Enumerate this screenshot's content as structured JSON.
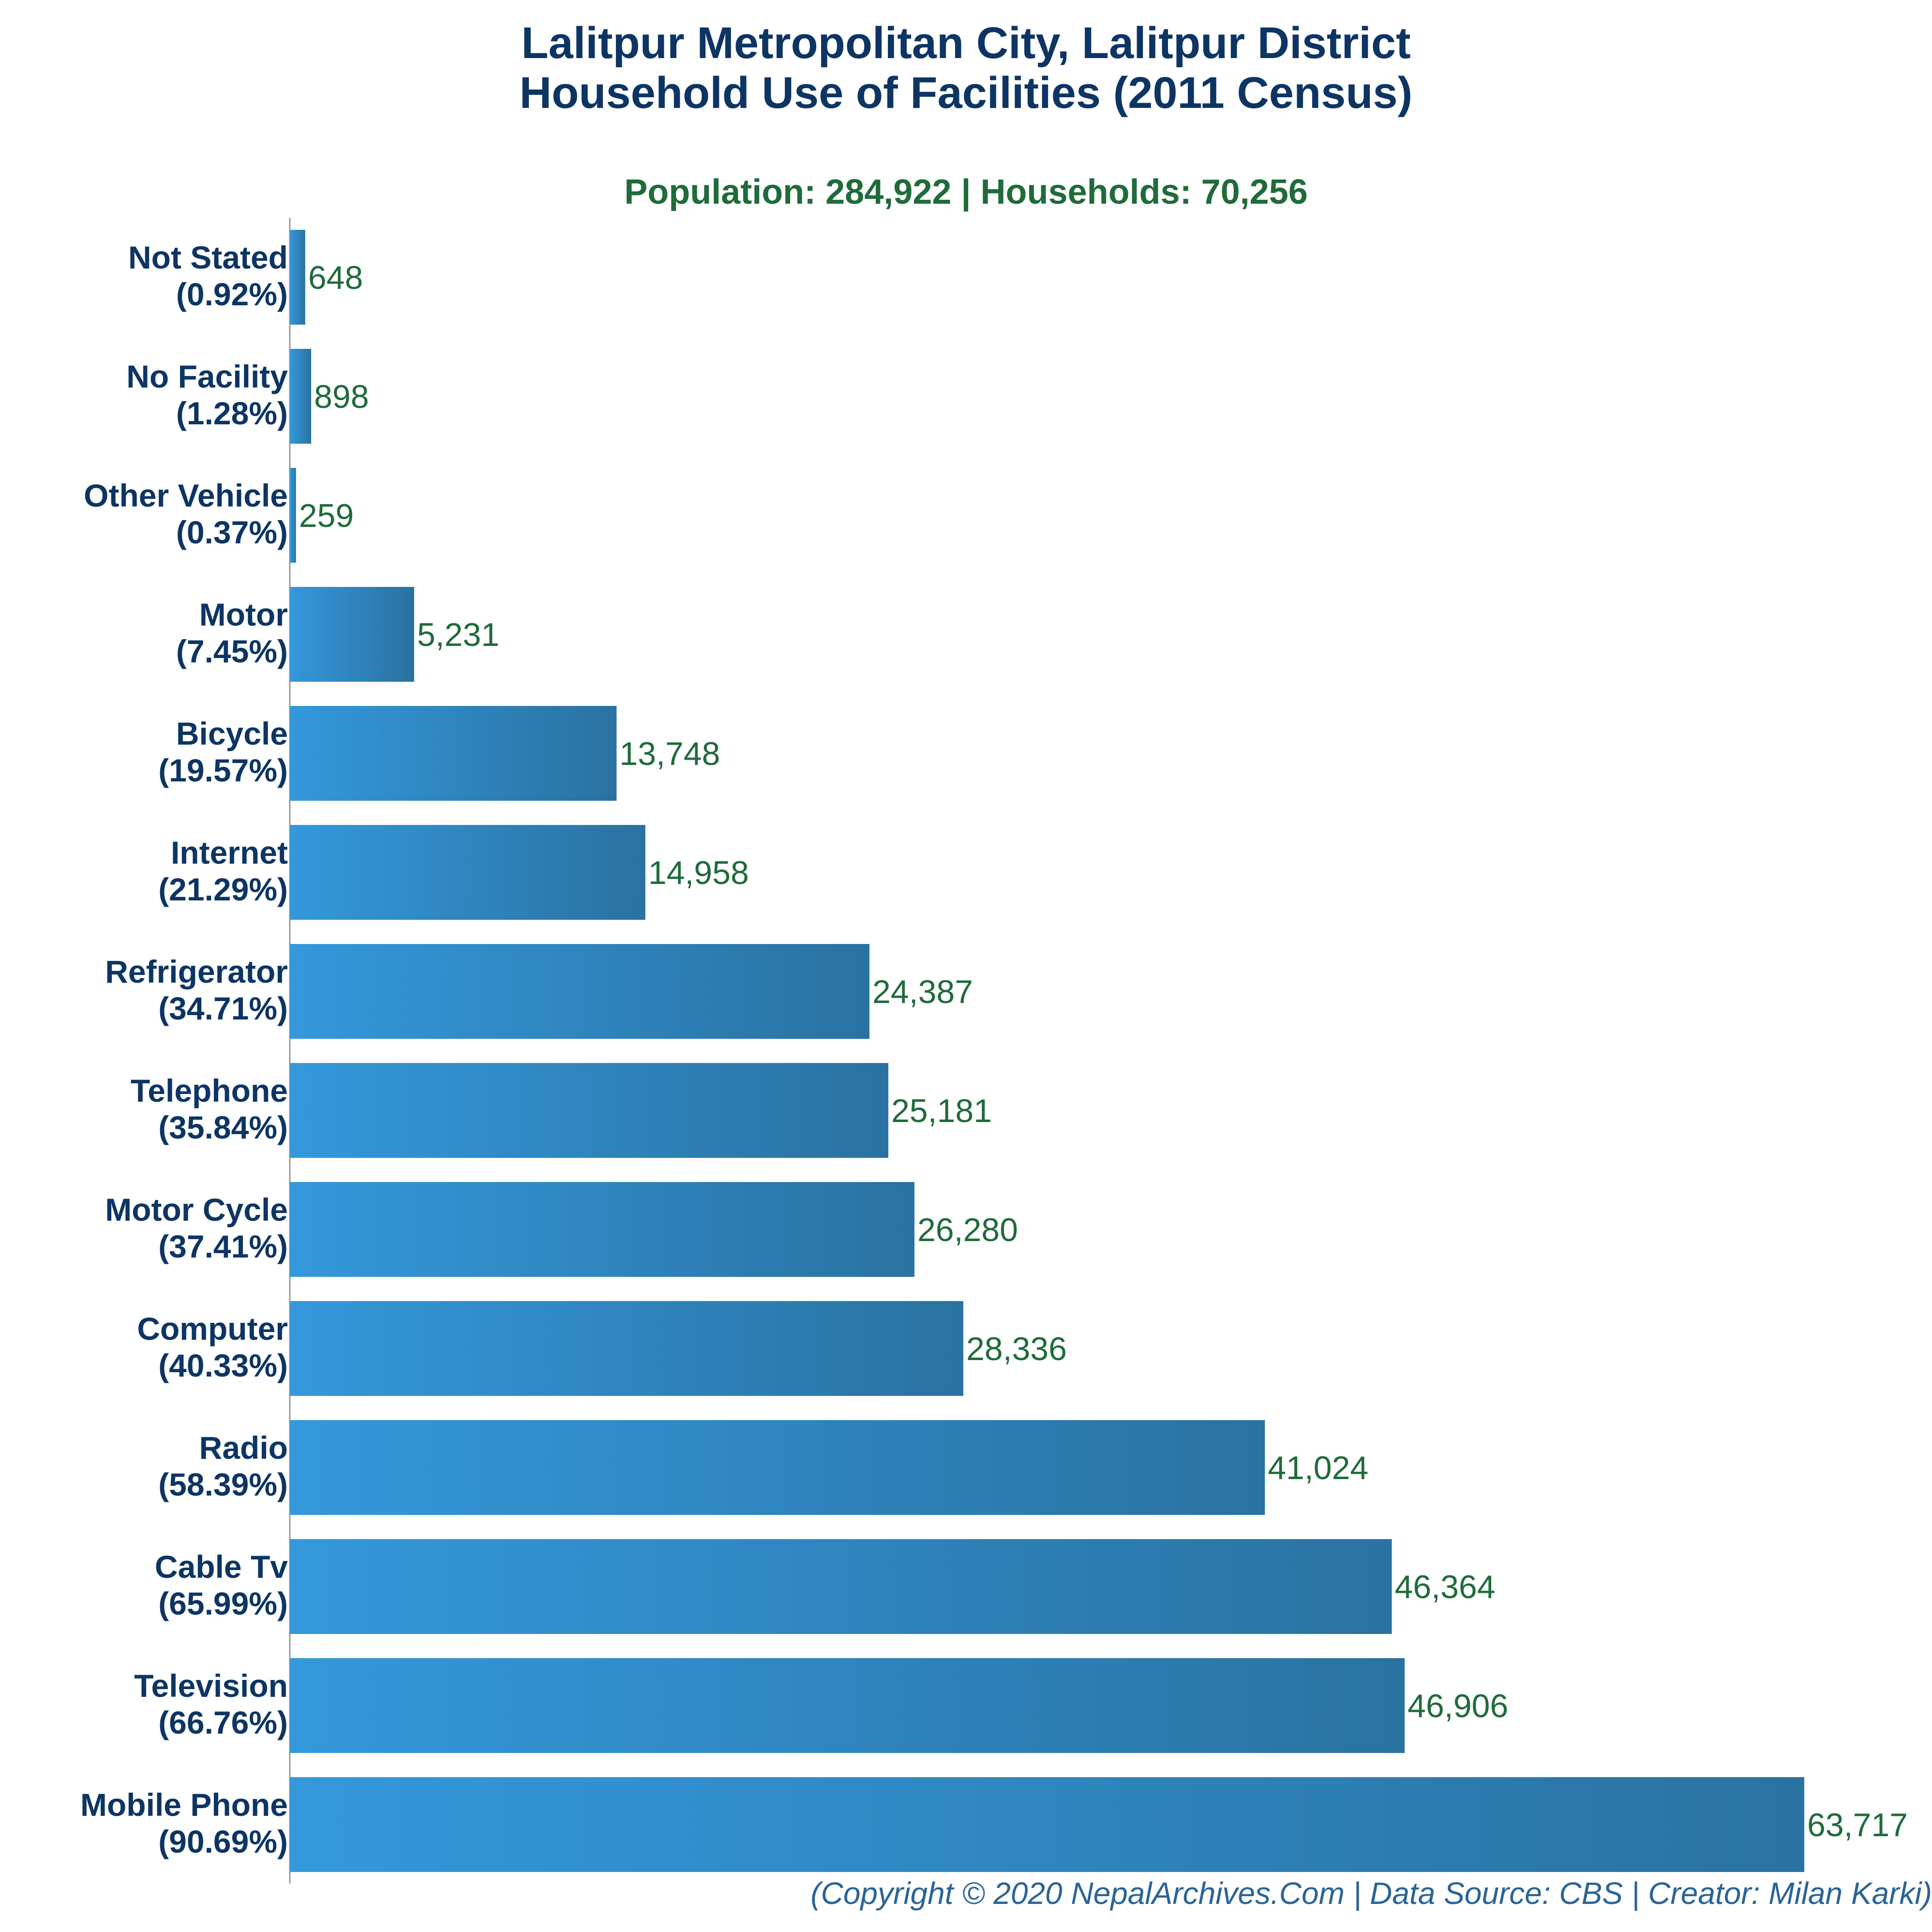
{
  "chart_data": {
    "type": "bar",
    "orientation": "horizontal",
    "title_lines": [
      "Lalitpur Metropolitan City, Lalitpur District",
      "Household Use of Facilities (2011 Census)"
    ],
    "subtitle": "Population: 284,922 | Households: 70,256",
    "categories": [
      "Not Stated",
      "No Facility",
      "Other Vehicle",
      "Motor",
      "Bicycle",
      "Internet",
      "Refrigerator",
      "Telephone",
      "Motor Cycle",
      "Computer",
      "Radio",
      "Cable Tv",
      "Television",
      "Mobile Phone"
    ],
    "percent_labels": [
      "(0.92%)",
      "(1.28%)",
      "(0.37%)",
      "(7.45%)",
      "(19.57%)",
      "(21.29%)",
      "(34.71%)",
      "(35.84%)",
      "(37.41%)",
      "(40.33%)",
      "(58.39%)",
      "(65.99%)",
      "(66.76%)",
      "(90.69%)"
    ],
    "values": [
      648,
      898,
      259,
      5231,
      13748,
      14958,
      24387,
      25181,
      26280,
      28336,
      41024,
      46364,
      46906,
      63717
    ],
    "value_labels": [
      "648",
      "898",
      "259",
      "5,231",
      "13,748",
      "14,958",
      "24,387",
      "25,181",
      "26,280",
      "28,336",
      "41,024",
      "46,364",
      "46,906",
      "63,717"
    ],
    "xlim": [
      0,
      63717
    ],
    "grid": false,
    "legend": "none",
    "footer": "(Copyright © 2020 NepalArchives.Com | Data Source: CBS | Creator: Milan Karki)",
    "colors": {
      "bar_left": "#3498db",
      "bar_right": "#2a72a1",
      "value_text": "#1f6b3a",
      "category_text": "#0d3564",
      "title_text": "#0d3564",
      "axis": "#999999",
      "footer_text": "#2a6497"
    }
  }
}
